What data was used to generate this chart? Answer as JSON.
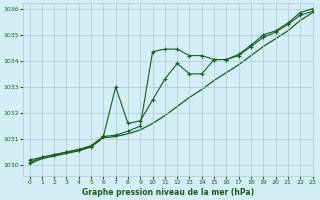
{
  "title": "Graphe pression niveau de la mer (hPa)",
  "bg_color": "#d4eef7",
  "grid_color": "#b0c8d0",
  "line_color": "#1a5c1a",
  "xlim": [
    -0.5,
    23
  ],
  "ylim": [
    1029.6,
    1036.2
  ],
  "yticks": [
    1030,
    1031,
    1032,
    1033,
    1034,
    1035,
    1036
  ],
  "xticks": [
    0,
    1,
    2,
    3,
    4,
    5,
    6,
    7,
    8,
    9,
    10,
    11,
    12,
    13,
    14,
    15,
    16,
    17,
    18,
    19,
    20,
    21,
    22,
    23
  ],
  "s1_x": [
    0,
    1,
    2,
    3,
    4,
    5,
    6,
    7,
    8,
    9,
    10,
    11,
    12,
    13,
    14,
    15,
    16,
    17,
    18,
    19,
    20,
    21,
    22,
    23
  ],
  "s1_y": [
    1030.2,
    1030.3,
    1030.4,
    1030.5,
    1030.6,
    1030.7,
    1031.1,
    1031.15,
    1031.3,
    1031.5,
    1034.35,
    1034.45,
    1034.45,
    1034.2,
    1034.2,
    1034.05,
    1034.05,
    1034.2,
    1034.55,
    1034.9,
    1035.1,
    1035.4,
    1035.75,
    1035.9
  ],
  "s2_x": [
    0,
    1,
    2,
    3,
    4,
    5,
    6,
    7,
    8,
    9,
    10,
    11,
    12,
    13,
    14,
    15,
    16,
    17,
    18,
    19,
    20,
    21,
    22,
    23
  ],
  "s2_y": [
    1030.1,
    1030.3,
    1030.4,
    1030.5,
    1030.6,
    1030.75,
    1031.1,
    1033.0,
    1031.6,
    1031.7,
    1032.5,
    1033.3,
    1033.9,
    1033.5,
    1033.5,
    1034.05,
    1034.05,
    1034.25,
    1034.6,
    1035.0,
    1035.15,
    1035.45,
    1035.85,
    1036.0
  ],
  "s3_x": [
    0,
    1,
    2,
    3,
    4,
    5,
    6,
    7,
    8,
    9,
    10,
    11,
    12,
    13,
    14,
    15,
    16,
    17,
    18,
    19,
    20,
    21,
    22,
    23
  ],
  "s3_y": [
    1030.05,
    1030.25,
    1030.35,
    1030.45,
    1030.55,
    1030.7,
    1031.05,
    1031.1,
    1031.2,
    1031.35,
    1031.6,
    1031.9,
    1032.25,
    1032.6,
    1032.9,
    1033.25,
    1033.55,
    1033.85,
    1034.2,
    1034.55,
    1034.85,
    1035.15,
    1035.55,
    1035.85
  ]
}
